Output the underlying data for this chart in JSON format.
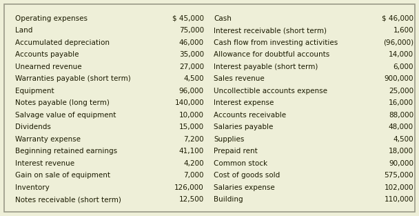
{
  "background_color": "#eeefd8",
  "border_color": "#999988",
  "text_color": "#1a1a00",
  "font_size": 7.5,
  "left_col": [
    [
      "Operating expenses",
      "$ 45,000"
    ],
    [
      "Land",
      "75,000"
    ],
    [
      "Accumulated depreciation",
      "46,000"
    ],
    [
      "Accounts payable",
      "35,000"
    ],
    [
      "Unearned revenue",
      "27,000"
    ],
    [
      "Warranties payable (short term)",
      "4,500"
    ],
    [
      "Equipment",
      "96,000"
    ],
    [
      "Notes payable (long term)",
      "140,000"
    ],
    [
      "Salvage value of equipment",
      "10,000"
    ],
    [
      "Dividends",
      "15,000"
    ],
    [
      "Warranty expense",
      "7,200"
    ],
    [
      "Beginning retained earnings",
      "41,100"
    ],
    [
      "Interest revenue",
      "4,200"
    ],
    [
      "Gain on sale of equipment",
      "7,000"
    ],
    [
      "Inventory",
      "126,000"
    ],
    [
      "Notes receivable (short term)",
      "12,500"
    ]
  ],
  "right_col": [
    [
      "Cash",
      "$ 46,000"
    ],
    [
      "Interest receivable (short term)",
      "1,600"
    ],
    [
      "Cash flow from investing activities",
      "(96,000)"
    ],
    [
      "Allowance for doubtful accounts",
      "14,000"
    ],
    [
      "Interest payable (short term)",
      "6,000"
    ],
    [
      "Sales revenue",
      "900,000"
    ],
    [
      "Uncollectible accounts expense",
      "25,000"
    ],
    [
      "Interest expense",
      "16,000"
    ],
    [
      "Accounts receivable",
      "88,000"
    ],
    [
      "Salaries payable",
      "48,000"
    ],
    [
      "Supplies",
      "4,500"
    ],
    [
      "Prepaid rent",
      "18,000"
    ],
    [
      "Common stock",
      "90,000"
    ],
    [
      "Cost of goods sold",
      "575,000"
    ],
    [
      "Salaries expense",
      "102,000"
    ],
    [
      "Building",
      "110,000"
    ]
  ]
}
